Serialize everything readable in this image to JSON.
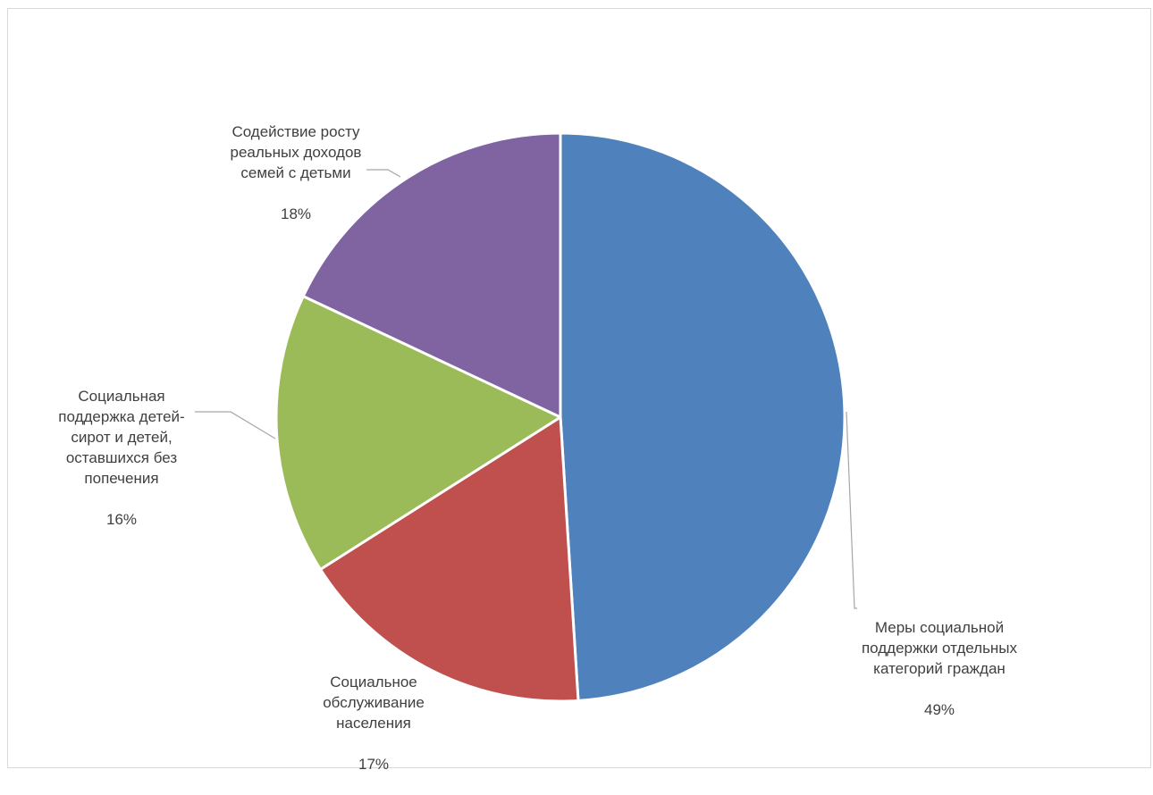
{
  "chart_data": {
    "type": "pie",
    "title": "",
    "slices": [
      {
        "label": "Меры социальной\nподдержки отдельных\nкатегорий граждан",
        "percent_label": "49%",
        "value": 49,
        "color": "#4f81bd"
      },
      {
        "label": "Социальное\nобслуживание\nнаселения",
        "percent_label": "17%",
        "value": 17,
        "color": "#c0504d"
      },
      {
        "label": "Социальная\nподдержка детей-\nсирот и детей,\nоставшихся без\nпопечения",
        "percent_label": "16%",
        "value": 16,
        "color": "#9bbb59"
      },
      {
        "label": "Содействие росту\nреальных доходов\nсемей с детьми",
        "percent_label": "18%",
        "value": 18,
        "color": "#8064a2"
      }
    ],
    "start_angle": "12 o'clock",
    "direction": "clockwise",
    "legend": "none",
    "data_labels": "outside with leader lines"
  }
}
